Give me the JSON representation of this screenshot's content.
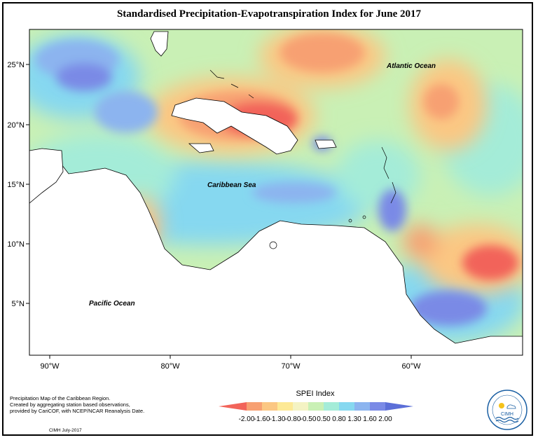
{
  "title": "Standardised Precipitation-Evapotranspiration Index for June 2017",
  "map": {
    "lon_ticks": [
      "90°W",
      "80°W",
      "70°W",
      "60°W"
    ],
    "lat_ticks": [
      "25°N",
      "20°N",
      "15°N",
      "10°N",
      "5°N"
    ],
    "places": {
      "atlantic": "Atlantic Ocean",
      "caribbean": "Caribbean Sea",
      "pacific": "Pacific Ocean"
    }
  },
  "description": {
    "line1": "Precipitation Map of the Caribbean Region.",
    "line2": "Created by aggregating station based observations,",
    "line3": "provided by CariCOF, with NCEP/NCAR Reanalysis Date."
  },
  "credit": "CIMH July-2017",
  "legend": {
    "title": "SPEI Index",
    "labels": [
      "-2.00",
      "-1.60",
      "-1.30",
      "-0.80",
      "-0.50",
      "0.50",
      "0.80",
      "1.30",
      "1.60",
      "2.00"
    ],
    "colors": [
      "#f2645a",
      "#f7a072",
      "#fbc783",
      "#fde995",
      "#f4f3c3",
      "#c9f0b5",
      "#a4ecd8",
      "#86d8f0",
      "#8cb4ef",
      "#7a8ae6",
      "#5c6fd8"
    ]
  },
  "logo": {
    "text": "CIMH",
    "icon": "cimh-logo-icon"
  }
}
